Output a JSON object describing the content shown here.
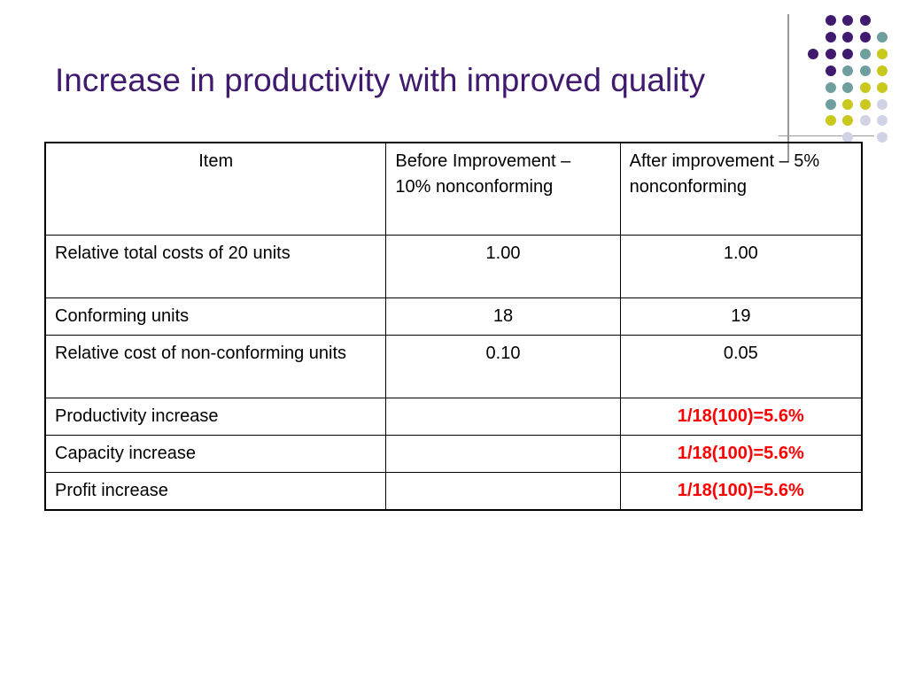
{
  "title": "Increase in productivity with improved quality",
  "colors": {
    "title": "#3f1a6e",
    "dot_purple": "#3f1a6e",
    "dot_teal": "#6e9e9e",
    "dot_yellow": "#c8c81e",
    "dot_lavender": "#d2d2e6",
    "highlight": "#ff0000"
  },
  "table": {
    "headers": [
      "Item",
      "Before Improvement – 10% nonconforming",
      "After improvement – 5% nonconforming"
    ],
    "rows": [
      [
        "Relative total costs of 20 units",
        "1.00",
        "1.00"
      ],
      [
        "Conforming units",
        "18",
        "19"
      ],
      [
        "Relative cost of non-conforming units",
        "0.10",
        "0.05"
      ],
      [
        "Productivity increase",
        "",
        "1/18(100)=5.6%"
      ],
      [
        "Capacity increase",
        "",
        "1/18(100)=5.6%"
      ],
      [
        "Profit increase",
        "",
        "1/18(100)=5.6%"
      ]
    ]
  }
}
